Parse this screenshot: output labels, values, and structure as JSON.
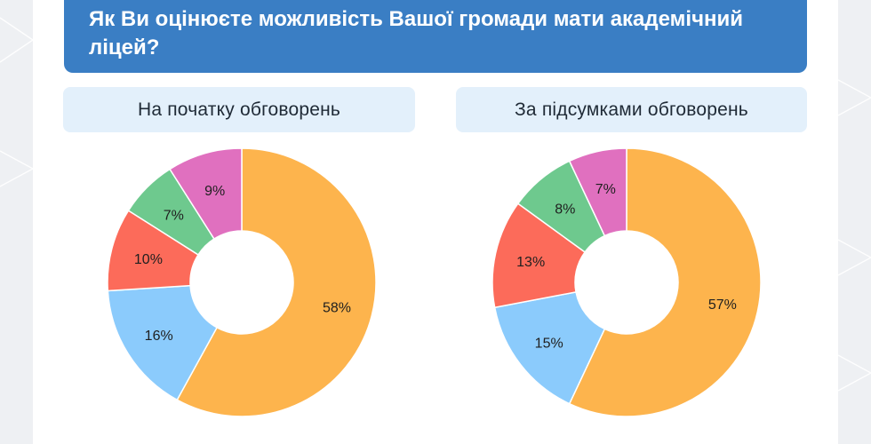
{
  "title": "Як Ви оцінюєте можливість Вашої громади мати академічний ліцей?",
  "chart_data": [
    {
      "type": "pie",
      "donut": true,
      "title": "На початку обговорень",
      "categories": [
        "",
        "",
        "",
        "",
        ""
      ],
      "values": [
        58,
        16,
        10,
        7,
        9
      ],
      "labels": [
        "58%",
        "16%",
        "10%",
        "7%",
        "9%"
      ],
      "colors": [
        "#fdb44d",
        "#8bcbfc",
        "#fc6b5a",
        "#6ec98e",
        "#e070bf"
      ]
    },
    {
      "type": "pie",
      "donut": true,
      "title": "За підсумками обговорень",
      "categories": [
        "",
        "",
        "",
        "",
        ""
      ],
      "values": [
        57,
        15,
        13,
        8,
        7
      ],
      "labels": [
        "57%",
        "15%",
        "13%",
        "8%",
        "7%"
      ],
      "colors": [
        "#fdb44d",
        "#8bcbfc",
        "#fc6b5a",
        "#6ec98e",
        "#e070bf"
      ]
    }
  ]
}
